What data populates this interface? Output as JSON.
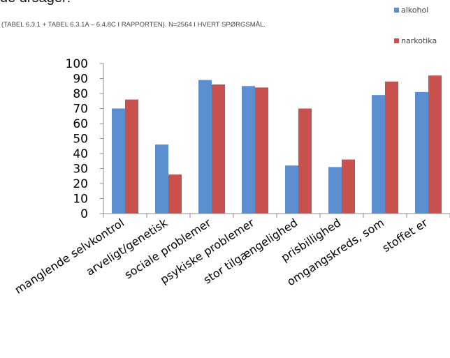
{
  "header": {
    "title": "de ursager:",
    "source_note": "(TABEL 6.3.1 + TABEL 6.3.1A – 6.4.8C I RAPPORTEN). N=2564 I HVERT SPØRGSMÅL."
  },
  "colors": {
    "alkohol": "#5b8fd0",
    "narkotika": "#c8504d",
    "axis": "#8c8c8c"
  },
  "chart_data": {
    "type": "bar",
    "categories": [
      "manglende selvkontrol",
      "arveligt/genetisk",
      "sociale problemer",
      "psykiske problemer",
      "stor tilgængelighed",
      "prisbillighed",
      "omgangskreds, som",
      "stoffet er"
    ],
    "series": [
      {
        "name": "alkohol",
        "values": [
          70,
          46,
          89,
          85,
          32,
          31,
          79,
          81
        ]
      },
      {
        "name": "narkotika",
        "values": [
          76,
          26,
          86,
          84,
          70,
          36,
          88,
          92
        ]
      }
    ],
    "ylim": [
      0,
      100
    ],
    "yticks": [
      0,
      10,
      20,
      30,
      40,
      50,
      60,
      70,
      80,
      90,
      100
    ],
    "legend": "top-right",
    "grid": false
  }
}
